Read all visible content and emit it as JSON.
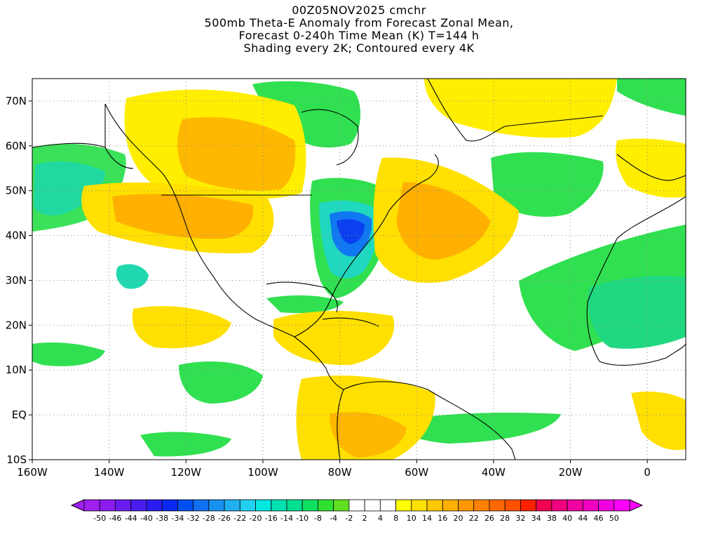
{
  "title": {
    "line1": "00Z05NOV2025 cmchr",
    "line2": "500mb Theta-E Anomaly from Forecast Zonal Mean,",
    "line3": "Forecast 0-240h Time Mean (K) T=144 h",
    "line4": "Shading every 2K; Contoured every 4K"
  },
  "axes": {
    "x_ticks": [
      "160W",
      "140W",
      "120W",
      "100W",
      "80W",
      "60W",
      "40W",
      "20W",
      "0"
    ],
    "y_ticks": [
      "70N",
      "60N",
      "50N",
      "40N",
      "30N",
      "20N",
      "10N",
      "EQ",
      "10S"
    ],
    "lon_range": [
      -160,
      10
    ],
    "lat_range": [
      -10,
      75
    ],
    "gridlines": "dotted"
  },
  "colorbar": {
    "labels": [
      "-50",
      "-46",
      "-44",
      "-40",
      "-38",
      "-34",
      "-32",
      "-28",
      "-26",
      "-22",
      "-20",
      "-16",
      "-14",
      "-10",
      "-8",
      "-4",
      "-2",
      "2",
      "4",
      "8",
      "10",
      "14",
      "16",
      "20",
      "22",
      "26",
      "28",
      "32",
      "34",
      "38",
      "40",
      "44",
      "46",
      "50"
    ],
    "colors": [
      "#a020f0",
      "#8c1cf0",
      "#6a1cf0",
      "#4a1cf0",
      "#2a1cf0",
      "#0a28f0",
      "#0050f0",
      "#1070f0",
      "#1890f0",
      "#20b0f0",
      "#20d0f0",
      "#00e8e0",
      "#00e0b0",
      "#00e090",
      "#10e060",
      "#30e030",
      "#60e020",
      "#ffffff",
      "#ffffff",
      "#ffffff",
      "#ffff00",
      "#ffe000",
      "#ffc800",
      "#ffb000",
      "#ff9800",
      "#ff8000",
      "#ff6800",
      "#ff5000",
      "#ff2000",
      "#f00050",
      "#f00080",
      "#f000a0",
      "#f000c0",
      "#f000e0",
      "#ff00ff"
    ]
  },
  "regions": [
    {
      "name": "northeast-us-cold-anomaly",
      "label": "negative"
    },
    {
      "name": "canada-warm-anomaly",
      "label": "positive"
    },
    {
      "name": "western-atlantic-warm-anomaly",
      "label": "positive"
    }
  ]
}
